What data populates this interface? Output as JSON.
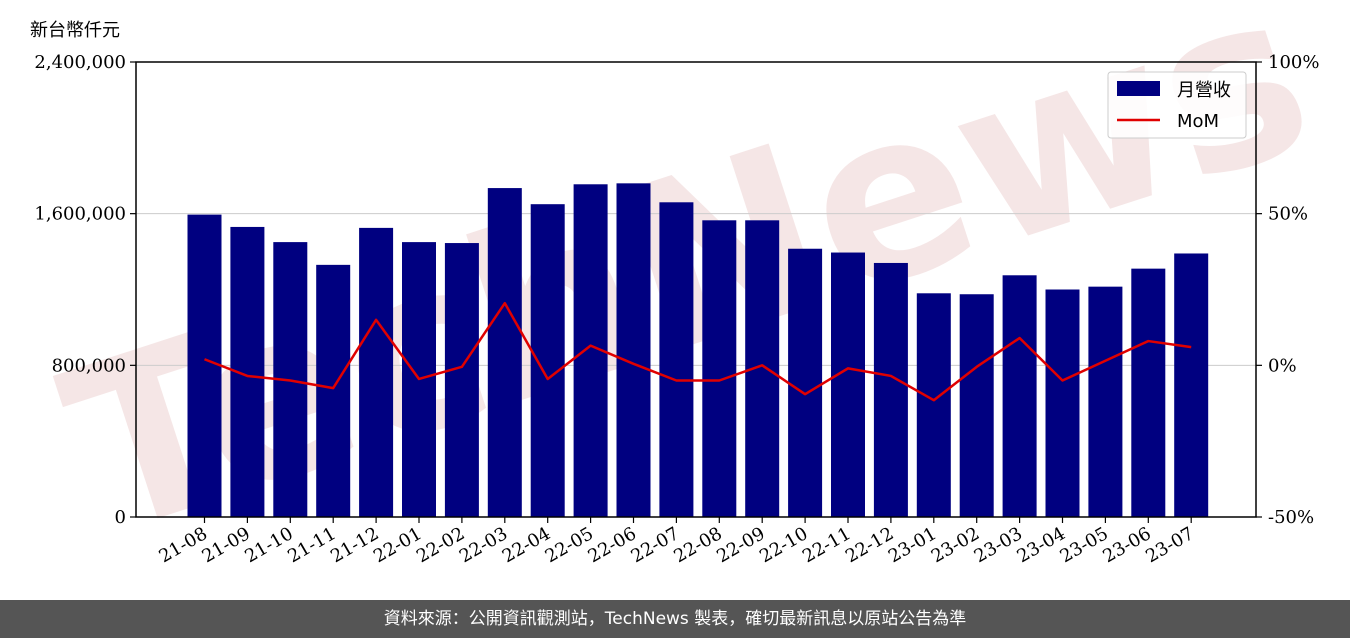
{
  "unit_label": "新台幣仟元",
  "footer_text": "資料來源：公開資訊觀測站，TechNews 製表，確切最新訊息以原站公告為準",
  "watermark_text": "TechNews",
  "colors": {
    "bar": "#000080",
    "line": "#e00000",
    "grid": "#cccccc",
    "footer_bg": "#555555"
  },
  "chart_data": {
    "type": "bar",
    "categories": [
      "21-08",
      "21-09",
      "21-10",
      "21-11",
      "21-12",
      "22-01",
      "22-02",
      "22-03",
      "22-04",
      "22-05",
      "22-06",
      "22-07",
      "22-08",
      "22-09",
      "22-10",
      "22-11",
      "22-12",
      "23-01",
      "23-02",
      "23-03",
      "23-04",
      "23-05",
      "23-06",
      "23-07"
    ],
    "series": [
      {
        "name": "月營收",
        "type": "bar",
        "axis": "left",
        "values": [
          1595000,
          1530000,
          1450000,
          1330000,
          1525000,
          1450000,
          1445000,
          1735000,
          1650000,
          1755000,
          1760000,
          1660000,
          1565000,
          1565000,
          1415000,
          1395000,
          1340000,
          1180000,
          1175000,
          1275000,
          1200000,
          1215000,
          1310000,
          1390000
        ]
      },
      {
        "name": "MoM",
        "type": "line",
        "axis": "right",
        "values": [
          2.0,
          -3.5,
          -5.0,
          -7.5,
          15.0,
          -4.5,
          -0.5,
          20.5,
          -4.5,
          6.5,
          0.5,
          -5.0,
          -5.0,
          0.0,
          -9.5,
          -1.0,
          -3.5,
          -11.5,
          -0.5,
          9.0,
          -5.0,
          1.5,
          8.0,
          6.0
        ]
      }
    ],
    "left_axis": {
      "ylim": [
        0,
        2400000
      ],
      "ticks": [
        0,
        800000,
        1600000,
        2400000
      ],
      "tick_labels": [
        "0",
        "800,000",
        "1,600,000",
        "2,400,000"
      ]
    },
    "right_axis": {
      "ylim": [
        -50,
        100
      ],
      "ticks": [
        -50,
        0,
        50,
        100
      ],
      "tick_labels": [
        "-50%",
        "0%",
        "50%",
        "100%"
      ]
    },
    "grid": "horizontal",
    "legend_position": "top-right"
  }
}
